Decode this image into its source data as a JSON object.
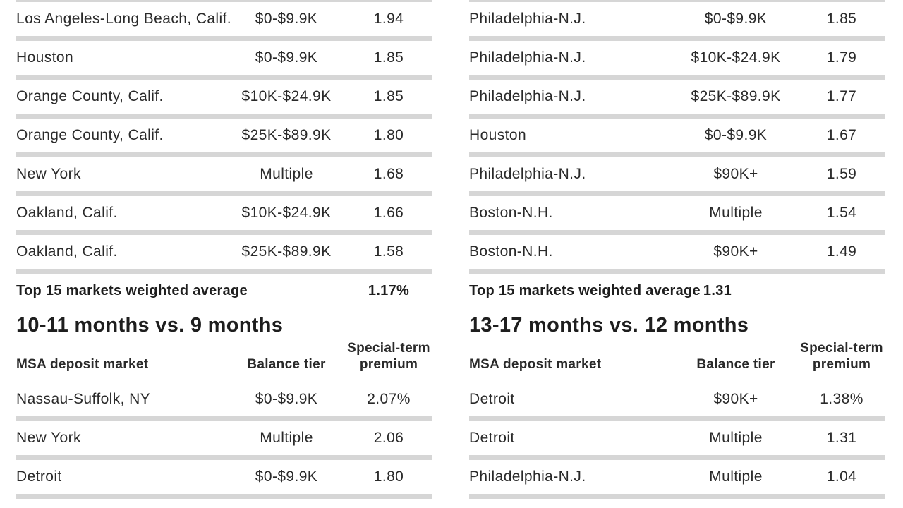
{
  "chart_data": [
    {
      "type": "table",
      "rows": [
        {
          "market": "Los Angeles-Long Beach, Calif.",
          "tier": "$0-$9.9K",
          "premium": "1.94"
        },
        {
          "market": "Houston",
          "tier": "$0-$9.9K",
          "premium": "1.85"
        },
        {
          "market": "Orange County, Calif.",
          "tier": "$10K-$24.9K",
          "premium": "1.85"
        },
        {
          "market": "Orange County, Calif.",
          "tier": "$25K-$89.9K",
          "premium": "1.80"
        },
        {
          "market": "New York",
          "tier": "Multiple",
          "premium": "1.68"
        },
        {
          "market": "Oakland, Calif.",
          "tier": "$10K-$24.9K",
          "premium": "1.66"
        },
        {
          "market": "Oakland, Calif.",
          "tier": "$25K-$89.9K",
          "premium": "1.58"
        }
      ],
      "summary": {
        "label": "Top 15 markets weighted average",
        "value": "1.17%"
      }
    },
    {
      "type": "table",
      "rows": [
        {
          "market": "Philadelphia-N.J.",
          "tier": "$0-$9.9K",
          "premium": "1.85"
        },
        {
          "market": "Philadelphia-N.J.",
          "tier": "$10K-$24.9K",
          "premium": "1.79"
        },
        {
          "market": "Philadelphia-N.J.",
          "tier": "$25K-$89.9K",
          "premium": "1.77"
        },
        {
          "market": "Houston",
          "tier": "$0-$9.9K",
          "premium": "1.67"
        },
        {
          "market": "Philadelphia-N.J.",
          "tier": "$90K+",
          "premium": "1.59"
        },
        {
          "market": "Boston-N.H.",
          "tier": "Multiple",
          "premium": "1.54"
        },
        {
          "market": "Boston-N.H.",
          "tier": "$90K+",
          "premium": "1.49"
        }
      ],
      "summary": {
        "label": "Top 15 markets weighted average",
        "value": "1.31"
      }
    },
    {
      "type": "table",
      "title": "10-11 months vs. 9 months",
      "columns": [
        "MSA deposit market",
        "Balance tier",
        "Special-term premium"
      ],
      "rows": [
        {
          "market": "Nassau-Suffolk, NY",
          "tier": "$0-$9.9K",
          "premium": "2.07%"
        },
        {
          "market": "New York",
          "tier": "Multiple",
          "premium": "2.06"
        },
        {
          "market": "Detroit",
          "tier": "$0-$9.9K",
          "premium": "1.80"
        }
      ]
    },
    {
      "type": "table",
      "title": "13-17 months vs. 12 months",
      "columns": [
        "MSA deposit market",
        "Balance tier",
        "Special-term premium"
      ],
      "rows": [
        {
          "market": "Detroit",
          "tier": "$90K+",
          "premium": "1.38%"
        },
        {
          "market": "Detroit",
          "tier": "Multiple",
          "premium": "1.31"
        },
        {
          "market": "Philadelphia-N.J.",
          "tier": "Multiple",
          "premium": "1.04"
        }
      ]
    }
  ]
}
